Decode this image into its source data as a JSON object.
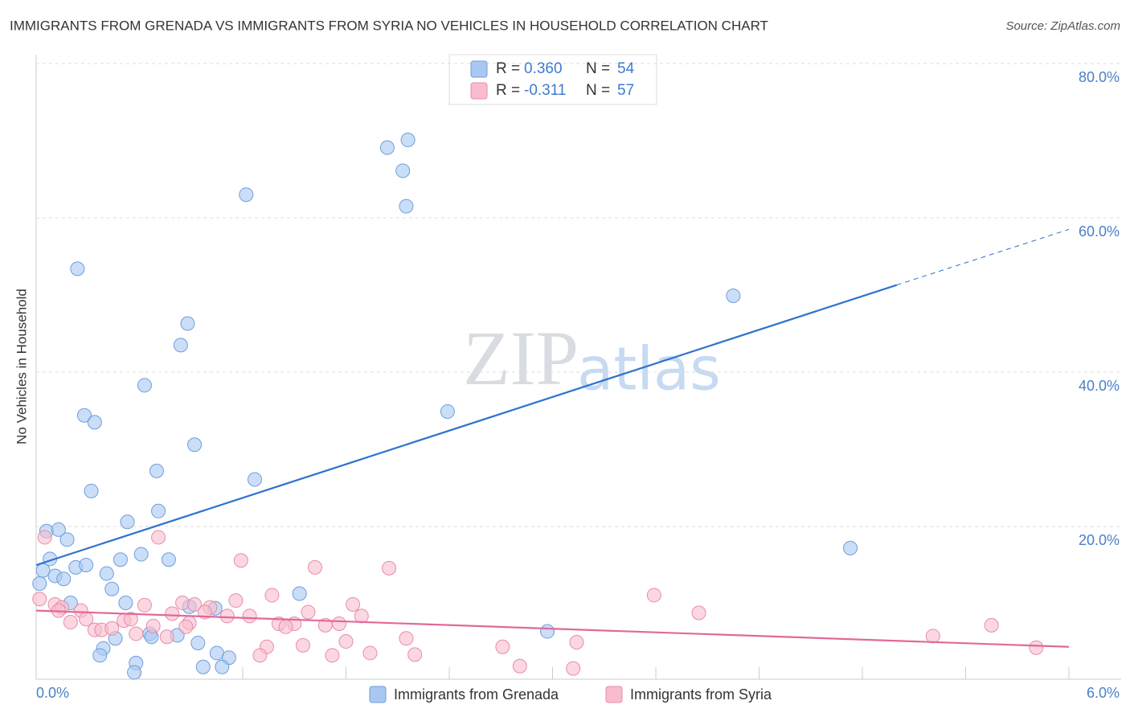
{
  "chart_data": {
    "type": "scatter",
    "title": "IMMIGRANTS FROM GRENADA VS IMMIGRANTS FROM SYRIA NO VEHICLES IN HOUSEHOLD CORRELATION CHART",
    "source": "Source: ZipAtlas.com",
    "y_label": "No Vehicles in Household",
    "watermark": [
      "ZIP",
      "atlas"
    ],
    "xlim": [
      0,
      6
    ],
    "ylim": [
      0,
      81
    ],
    "xticks": [
      {
        "value": 0,
        "label": "0.0%"
      },
      {
        "value": 6,
        "label": "6.0%"
      }
    ],
    "yticks": [
      {
        "value": 20,
        "label": "20.0%"
      },
      {
        "value": 40,
        "label": "40.0%"
      },
      {
        "value": 60,
        "label": "60.0%"
      },
      {
        "value": 80,
        "label": "80.0%"
      }
    ],
    "grid": true,
    "series": [
      {
        "name": "Immigrants from Grenada",
        "color": "#a9c8f1",
        "stroke": "#6d9edc",
        "line_color": "#2f72d0",
        "r_label": "R =",
        "r": "0.360",
        "n_label": "N =",
        "n": 54,
        "trend": {
          "x": [
            0,
            5
          ],
          "y": [
            15,
            51.3
          ]
        },
        "trend_extension": {
          "x": [
            5,
            6
          ],
          "y": [
            51.3,
            58.5
          ]
        },
        "x": [
          0.24,
          1.22,
          2.04,
          2.16,
          2.13,
          2.15,
          0.88,
          0.84,
          0.63,
          0.28,
          0.34,
          0.92,
          4.05,
          2.39,
          0.7,
          1.27,
          0.32,
          0.71,
          0.53,
          0.06,
          0.13,
          0.18,
          4.73,
          0.61,
          0.08,
          0.49,
          0.77,
          0.04,
          0.23,
          0.29,
          0.11,
          0.16,
          0.41,
          0.02,
          0.44,
          1.53,
          0.2,
          0.52,
          1.04,
          0.89,
          0.66,
          0.82,
          2.97,
          0.67,
          0.46,
          0.94,
          0.39,
          0.37,
          1.05,
          1.12,
          0.58,
          0.97,
          1.08,
          0.57
        ],
        "values": [
          53.4,
          63.0,
          69.1,
          70.1,
          66.1,
          61.5,
          46.3,
          43.5,
          38.3,
          34.4,
          33.5,
          30.6,
          49.9,
          34.9,
          27.2,
          26.1,
          24.6,
          22.0,
          20.6,
          19.4,
          19.6,
          18.3,
          17.2,
          16.4,
          15.8,
          15.7,
          15.7,
          14.3,
          14.7,
          15.0,
          13.6,
          13.2,
          13.9,
          12.6,
          11.9,
          11.3,
          10.1,
          10.1,
          9.4,
          9.6,
          6.1,
          5.9,
          6.4,
          5.7,
          5.5,
          4.9,
          4.2,
          3.3,
          3.6,
          3.0,
          2.3,
          1.8,
          1.8,
          1.1
        ]
      },
      {
        "name": "Immigrants from Syria",
        "color": "#f8bccd",
        "stroke": "#e98ca8",
        "line_color": "#e0699a",
        "r_label": "R =",
        "r": "-0.311",
        "n_label": "N =",
        "n": 57,
        "trend": {
          "x": [
            0,
            6
          ],
          "y": [
            9.1,
            4.4
          ]
        },
        "x": [
          0.05,
          0.71,
          1.19,
          1.62,
          2.05,
          3.59,
          0.02,
          1.37,
          1.16,
          0.11,
          0.15,
          0.63,
          0.85,
          0.92,
          1.01,
          1.84,
          0.26,
          0.79,
          0.98,
          1.11,
          1.24,
          1.58,
          1.89,
          3.85,
          0.29,
          0.51,
          0.55,
          0.89,
          0.2,
          1.41,
          1.5,
          1.45,
          1.68,
          1.76,
          0.68,
          5.55,
          0.34,
          0.38,
          0.44,
          0.58,
          0.87,
          0.76,
          5.21,
          2.15,
          1.8,
          3.14,
          1.34,
          1.55,
          2.71,
          5.81,
          1.94,
          2.2,
          1.3,
          1.72,
          2.81,
          3.12,
          0.13
        ],
        "values": [
          18.6,
          18.6,
          15.6,
          14.7,
          14.6,
          11.1,
          10.6,
          11.1,
          10.4,
          9.9,
          9.5,
          9.8,
          10.1,
          9.9,
          9.5,
          9.9,
          9.1,
          8.7,
          8.9,
          8.4,
          8.4,
          8.9,
          8.4,
          8.8,
          8.0,
          7.8,
          8.0,
          7.5,
          7.6,
          7.4,
          7.4,
          7.0,
          7.2,
          7.4,
          7.1,
          7.2,
          6.6,
          6.6,
          6.8,
          6.1,
          7.0,
          5.7,
          5.8,
          5.5,
          5.1,
          5.0,
          4.4,
          4.6,
          4.4,
          4.3,
          3.6,
          3.4,
          3.3,
          3.3,
          1.9,
          1.6,
          9.1
        ]
      }
    ]
  }
}
